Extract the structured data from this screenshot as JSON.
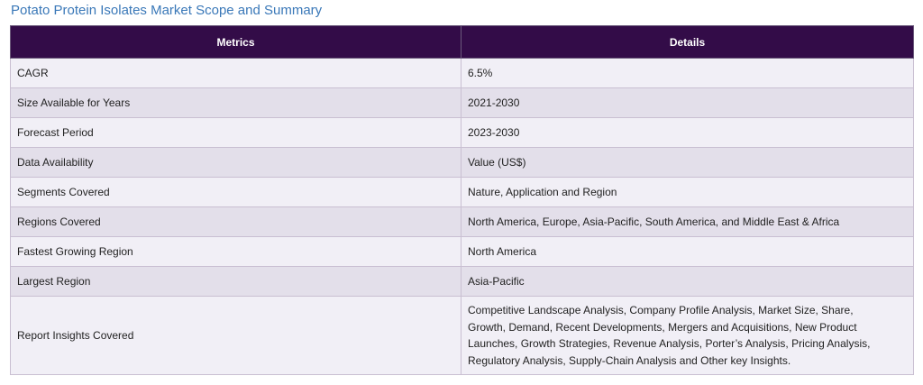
{
  "title": "Potato Protein Isolates Market Scope and Summary",
  "table": {
    "headers": [
      "Metrics",
      "Details"
    ],
    "rows": [
      {
        "metric": "CAGR",
        "detail": "6.5%"
      },
      {
        "metric": "Size Available for Years",
        "detail": "2021-2030"
      },
      {
        "metric": "Forecast Period",
        "detail": "2023-2030"
      },
      {
        "metric": "Data Availability",
        "detail": "Value (US$)"
      },
      {
        "metric": "Segments Covered",
        "detail": "Nature, Application and Region"
      },
      {
        "metric": "Regions Covered",
        "detail": "North America, Europe, Asia-Pacific, South America, and Middle East & Africa"
      },
      {
        "metric": "Fastest Growing Region",
        "detail": "North America"
      },
      {
        "metric": "Largest Region",
        "detail": "Asia-Pacific"
      },
      {
        "metric": "Report Insights Covered",
        "detail": "Competitive Landscape Analysis, Company Profile Analysis, Market Size, Share, Growth, Demand, Recent Developments, Mergers and Acquisitions, New Product Launches, Growth Strategies, Revenue Analysis, Porter’s Analysis, Pricing Analysis, Regulatory Analysis, Supply-Chain Analysis and Other key Insights."
      }
    ]
  },
  "colors": {
    "header_bg": "#330c48",
    "title": "#3a78b8",
    "row_light": "#f1eff6",
    "row_dark": "#e3dfea"
  }
}
